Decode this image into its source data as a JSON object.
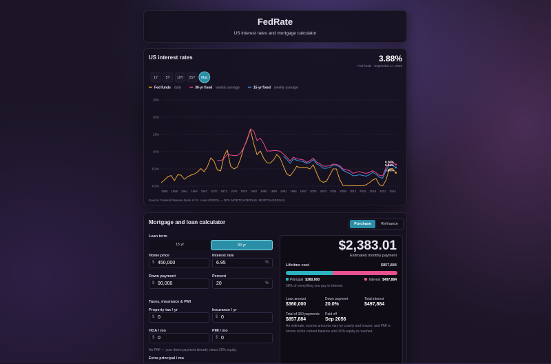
{
  "header": {
    "title": "FedRate",
    "subtitle": "US interest rates and mortgage calculator"
  },
  "chart_data": {
    "type": "line",
    "title": "US interest rates",
    "current_value": "3.88%",
    "current_note": "Fed funds · September 17, 2025",
    "ranges": [
      "1Y",
      "5Y",
      "10Y",
      "25Y",
      "Max"
    ],
    "active_range": "Max",
    "x": [
      1954,
      1955,
      1956,
      1957,
      1958,
      1959,
      1960,
      1961,
      1962,
      1963,
      1964,
      1965,
      1966,
      1967,
      1968,
      1969,
      1970,
      1971,
      1972,
      1973,
      1974,
      1975,
      1976,
      1977,
      1978,
      1979,
      1980,
      1981,
      1982,
      1983,
      1984,
      1985,
      1986,
      1987,
      1988,
      1989,
      1990,
      1991,
      1992,
      1993,
      1994,
      1995,
      1996,
      1997,
      1998,
      1999,
      2000,
      2001,
      2002,
      2003,
      2004,
      2005,
      2006,
      2007,
      2008,
      2009,
      2010,
      2011,
      2012,
      2013,
      2014,
      2015,
      2016,
      2017,
      2018,
      2019,
      2020,
      2021,
      2022,
      2023,
      2024,
      2025
    ],
    "xlim": [
      1954,
      2026.5
    ],
    "xticks": [
      1955,
      1958,
      1961,
      1964,
      1967,
      1970,
      1973,
      1976,
      1979,
      1982,
      1985,
      1988,
      1991,
      1994,
      1997,
      2000,
      2003,
      2006,
      2009,
      2012,
      2015,
      2018,
      2021,
      2024
    ],
    "ylim": [
      0,
      25
    ],
    "yticks": [
      {
        "value": 0,
        "label": "0.0%"
      },
      {
        "value": 5,
        "label": "5.0%"
      },
      {
        "value": 10,
        "label": "10%"
      },
      {
        "value": 15,
        "label": "15%"
      },
      {
        "value": 20,
        "label": "20%"
      },
      {
        "value": 25,
        "label": "25%"
      }
    ],
    "grid": true,
    "series": [
      {
        "name": "Fed funds",
        "note": "daily",
        "color": "#e8a33a",
        "end_label": "3.88%",
        "values": [
          1.0,
          1.8,
          2.7,
          3.1,
          1.6,
          3.3,
          3.2,
          2.0,
          2.7,
          3.2,
          3.5,
          4.1,
          5.1,
          4.2,
          5.7,
          8.2,
          7.2,
          4.7,
          4.4,
          8.7,
          10.5,
          5.8,
          5.0,
          5.5,
          7.9,
          11.2,
          13.4,
          16.4,
          12.3,
          9.1,
          10.2,
          8.1,
          6.8,
          6.7,
          7.6,
          9.2,
          8.1,
          5.7,
          3.5,
          3.0,
          4.2,
          5.8,
          5.3,
          5.5,
          5.4,
          5.0,
          6.2,
          3.9,
          1.7,
          1.1,
          1.4,
          3.2,
          5.0,
          5.0,
          1.9,
          0.2,
          0.2,
          0.1,
          0.1,
          0.1,
          0.1,
          0.1,
          0.4,
          1.0,
          1.8,
          2.2,
          0.4,
          0.1,
          1.7,
          5.0,
          5.1,
          3.88
        ]
      },
      {
        "name": "30-yr fixed",
        "note": "weekly average",
        "color": "#e8478f",
        "end_label": "6.26%",
        "values": [
          null,
          null,
          null,
          null,
          null,
          null,
          null,
          null,
          null,
          null,
          null,
          null,
          null,
          null,
          null,
          null,
          null,
          7.5,
          7.4,
          8.0,
          9.2,
          9.0,
          8.9,
          8.9,
          9.6,
          11.2,
          13.7,
          16.6,
          16.0,
          13.2,
          13.9,
          12.4,
          10.2,
          10.2,
          10.3,
          10.3,
          10.1,
          9.3,
          8.4,
          7.3,
          8.4,
          7.9,
          7.8,
          7.6,
          6.9,
          7.4,
          8.1,
          7.0,
          6.5,
          5.8,
          5.8,
          5.9,
          6.4,
          6.3,
          6.0,
          5.0,
          4.7,
          4.5,
          3.7,
          4.0,
          4.2,
          3.9,
          3.7,
          4.0,
          4.5,
          3.9,
          3.1,
          3.0,
          5.3,
          6.8,
          6.7,
          6.26
        ]
      },
      {
        "name": "15-yr fixed",
        "note": "weekly average",
        "color": "#3b8fe0",
        "end_label": "5.41%",
        "values": [
          null,
          null,
          null,
          null,
          null,
          null,
          null,
          null,
          null,
          null,
          null,
          null,
          null,
          null,
          null,
          null,
          null,
          null,
          null,
          null,
          null,
          null,
          null,
          null,
          null,
          null,
          null,
          null,
          null,
          null,
          null,
          null,
          null,
          null,
          null,
          null,
          null,
          8.7,
          7.8,
          6.6,
          7.9,
          7.5,
          7.3,
          7.1,
          6.6,
          6.9,
          7.7,
          6.5,
          6.0,
          5.2,
          5.2,
          5.4,
          6.1,
          6.0,
          5.6,
          4.6,
          4.1,
          3.7,
          3.0,
          3.1,
          3.3,
          3.1,
          2.9,
          3.3,
          4.0,
          3.4,
          2.6,
          2.3,
          4.6,
          6.1,
          6.0,
          5.41
        ]
      }
    ],
    "source": "Source: Federal Reserve Bank of St. Louis (FRED) — DFF, MORTGAGE30US, MORTGAGE15US."
  },
  "calculator": {
    "title": "Mortgage and loan calculator",
    "tabs": [
      "Purchase",
      "Refinance"
    ],
    "active_tab": "Purchase",
    "loan_term": {
      "label": "Loan term",
      "options": [
        "15 yr",
        "30 yr"
      ],
      "selected": "30 yr"
    },
    "fields": [
      {
        "label": "Home price",
        "prefix": "$",
        "value": "450,000"
      },
      {
        "label": "Interest rate",
        "value": "6.95",
        "suffix": "%"
      },
      {
        "label": "Down payment",
        "prefix": "$",
        "value": "90,000"
      },
      {
        "label": "Percent",
        "value": "20",
        "suffix": "%"
      }
    ],
    "section": "Taxes, insurance & PMI",
    "extras": [
      {
        "label": "Property tax / yr",
        "prefix": "$",
        "value": "0"
      },
      {
        "label": "Insurance / yr",
        "prefix": "$",
        "value": "0"
      },
      {
        "label": "HOA / mo",
        "prefix": "$",
        "value": "0"
      },
      {
        "label": "PMI / mo",
        "prefix": "$",
        "value": "0"
      }
    ],
    "pmi_note": "No PMI — your down payment already clears 20% equity.",
    "extra_principal_label": "Extra principal / mo"
  },
  "results": {
    "monthly_payment": "$2,383.01",
    "monthly_label": "Estimated monthly payment",
    "lifetime_label": "Lifetime cost",
    "lifetime_value": "$857,884",
    "breakdown": [
      {
        "name": "Principal",
        "value": 360000,
        "value_label": "$360,000",
        "color": "#2bb3c0"
      },
      {
        "name": "Interest",
        "value": 497884,
        "value_label": "$497,884",
        "color": "#e8508f"
      }
    ],
    "interest_note": "58% of everything you pay is interest.",
    "stats": [
      {
        "label": "Loan amount",
        "value": "$360,000"
      },
      {
        "label": "Down payment",
        "value": "20.0%"
      },
      {
        "label": "Total interest",
        "value": "$497,884"
      },
      {
        "label": "Total of 360 payments",
        "value": "$857,884"
      },
      {
        "label": "Paid off",
        "value": "Sep 2056"
      }
    ],
    "disclaimer": "An estimate; escrow amounts vary by county and insurer, and PMI is shown at the current balance until 20% equity is reached."
  }
}
